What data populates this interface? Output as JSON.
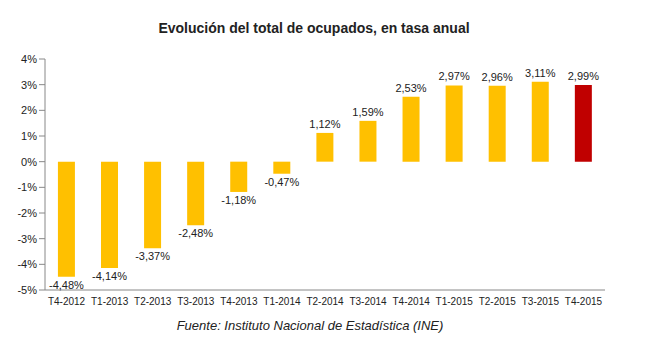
{
  "chart_data": {
    "type": "bar",
    "title": "Evolución del total de ocupados, en tasa anual",
    "source": "Fuente: Instituto Nacional de Estadística (INE)",
    "categories": [
      "T4-2012",
      "T1-2013",
      "T2-2013",
      "T3-2013",
      "T4-2013",
      "T1-2014",
      "T2-2014",
      "T3-2014",
      "T4-2014",
      "T1-2015",
      "T2-2015",
      "T3-2015",
      "T4-2015"
    ],
    "values": [
      -4.48,
      -4.14,
      -3.37,
      -2.48,
      -1.18,
      -0.47,
      1.12,
      1.59,
      2.53,
      2.97,
      2.96,
      3.11,
      2.99
    ],
    "value_labels": [
      "-4,48%",
      "-4,14%",
      "-3,37%",
      "-2,48%",
      "-1,18%",
      "-0,47%",
      "1,12%",
      "1,59%",
      "2,53%",
      "2,97%",
      "2,96%",
      "3,11%",
      "2,99%"
    ],
    "colors": [
      "#FFC000",
      "#FFC000",
      "#FFC000",
      "#FFC000",
      "#FFC000",
      "#FFC000",
      "#FFC000",
      "#FFC000",
      "#FFC000",
      "#FFC000",
      "#FFC000",
      "#FFC000",
      "#C00000"
    ],
    "ylim": [
      -5,
      4
    ],
    "yticks": [
      {
        "value": -5,
        "label": "-5%"
      },
      {
        "value": -4,
        "label": "-4%"
      },
      {
        "value": -3,
        "label": "-3%"
      },
      {
        "value": -2,
        "label": "-2%"
      },
      {
        "value": -1,
        "label": "-1%"
      },
      {
        "value": 0,
        "label": "0%"
      },
      {
        "value": 1,
        "label": "1%"
      },
      {
        "value": 2,
        "label": "2%"
      },
      {
        "value": 3,
        "label": "3%"
      },
      {
        "value": 4,
        "label": "4%"
      }
    ],
    "grid": false,
    "data_labels": true
  }
}
